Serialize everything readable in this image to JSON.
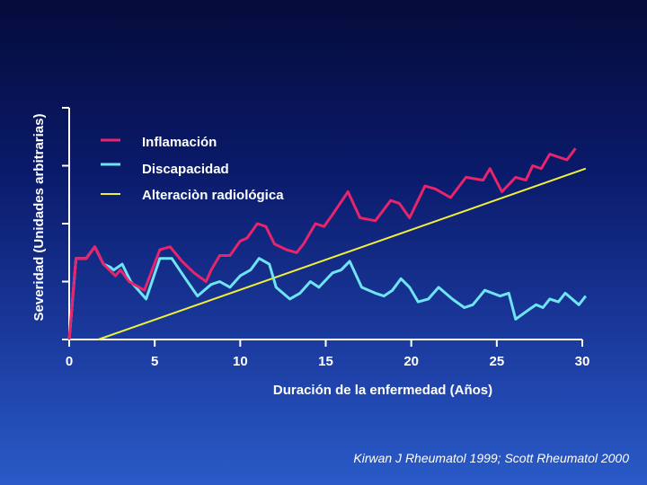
{
  "colors": {
    "inflamacion": "#e8246c",
    "discapacidad": "#6fe4f4",
    "radiologica": "#f0f03a",
    "axis": "#ffffff"
  },
  "source": "Kirwan J Rheumatol 1999; Scott Rheumatol 2000",
  "chart_data": {
    "type": "line",
    "xlabel": "Duración de la enfermedad (Años)",
    "ylabel": "Severidad (Unidades arbitrarias)",
    "xlim": [
      0,
      30
    ],
    "ylim": [
      0,
      4
    ],
    "xticks": [
      "0",
      "5",
      "10",
      "15",
      "20",
      "25",
      "30"
    ],
    "yticks": [
      0,
      1,
      2,
      3,
      4
    ],
    "legend_position": "top-left",
    "series": [
      {
        "name": "Inflamación",
        "color": "#e8246c",
        "points": [
          [
            0,
            0
          ],
          [
            0.4,
            1.4
          ],
          [
            1.0,
            1.4
          ],
          [
            1.5,
            1.6
          ],
          [
            2.0,
            1.3
          ],
          [
            2.7,
            1.1
          ],
          [
            3.0,
            1.2
          ],
          [
            3.5,
            1.0
          ],
          [
            4.4,
            0.85
          ],
          [
            5.3,
            1.55
          ],
          [
            5.9,
            1.6
          ],
          [
            6.6,
            1.35
          ],
          [
            7.3,
            1.15
          ],
          [
            8.0,
            1.0
          ],
          [
            8.3,
            1.2
          ],
          [
            8.8,
            1.45
          ],
          [
            9.4,
            1.45
          ],
          [
            10.0,
            1.7
          ],
          [
            10.4,
            1.75
          ],
          [
            11.0,
            2.0
          ],
          [
            11.5,
            1.95
          ],
          [
            12.0,
            1.65
          ],
          [
            12.7,
            1.55
          ],
          [
            13.3,
            1.5
          ],
          [
            13.7,
            1.65
          ],
          [
            14.4,
            2.0
          ],
          [
            14.9,
            1.95
          ],
          [
            15.5,
            2.2
          ],
          [
            16.3,
            2.55
          ],
          [
            17.0,
            2.1
          ],
          [
            17.9,
            2.05
          ],
          [
            18.8,
            2.4
          ],
          [
            19.3,
            2.35
          ],
          [
            19.9,
            2.1
          ],
          [
            20.8,
            2.65
          ],
          [
            21.4,
            2.6
          ],
          [
            22.3,
            2.45
          ],
          [
            23.2,
            2.8
          ],
          [
            24.2,
            2.75
          ],
          [
            24.6,
            2.95
          ],
          [
            25.3,
            2.55
          ],
          [
            26.1,
            2.8
          ],
          [
            26.7,
            2.75
          ],
          [
            27.1,
            3.0
          ],
          [
            27.6,
            2.95
          ],
          [
            28.1,
            3.2
          ],
          [
            29.1,
            3.1
          ],
          [
            29.6,
            3.3
          ]
        ]
      },
      {
        "name": "Discapacidad",
        "color": "#6fe4f4",
        "points": [
          [
            0,
            0
          ],
          [
            0.4,
            1.4
          ],
          [
            1.0,
            1.4
          ],
          [
            1.5,
            1.6
          ],
          [
            2.0,
            1.3
          ],
          [
            2.4,
            1.25
          ],
          [
            2.6,
            1.2
          ],
          [
            3.1,
            1.3
          ],
          [
            3.6,
            1.0
          ],
          [
            4.5,
            0.7
          ],
          [
            5.3,
            1.4
          ],
          [
            6.0,
            1.4
          ],
          [
            6.8,
            1.05
          ],
          [
            7.5,
            0.75
          ],
          [
            8.3,
            0.95
          ],
          [
            8.8,
            1.0
          ],
          [
            9.4,
            0.9
          ],
          [
            10.0,
            1.1
          ],
          [
            10.6,
            1.2
          ],
          [
            11.1,
            1.4
          ],
          [
            11.7,
            1.3
          ],
          [
            12.1,
            0.9
          ],
          [
            12.9,
            0.7
          ],
          [
            13.5,
            0.8
          ],
          [
            14.1,
            1.0
          ],
          [
            14.6,
            0.9
          ],
          [
            15.4,
            1.15
          ],
          [
            15.9,
            1.2
          ],
          [
            16.4,
            1.35
          ],
          [
            17.1,
            0.9
          ],
          [
            17.9,
            0.8
          ],
          [
            18.4,
            0.75
          ],
          [
            18.9,
            0.85
          ],
          [
            19.4,
            1.05
          ],
          [
            19.9,
            0.9
          ],
          [
            20.4,
            0.65
          ],
          [
            21.0,
            0.7
          ],
          [
            21.6,
            0.9
          ],
          [
            22.4,
            0.7
          ],
          [
            23.1,
            0.55
          ],
          [
            23.6,
            0.6
          ],
          [
            24.3,
            0.85
          ],
          [
            25.2,
            0.75
          ],
          [
            25.7,
            0.8
          ],
          [
            26.1,
            0.35
          ],
          [
            26.8,
            0.5
          ],
          [
            27.3,
            0.6
          ],
          [
            27.7,
            0.55
          ],
          [
            28.1,
            0.7
          ],
          [
            28.6,
            0.65
          ],
          [
            29.0,
            0.8
          ],
          [
            29.8,
            0.6
          ],
          [
            30.2,
            0.75
          ]
        ]
      },
      {
        "name": "Alteraciòn radiológica",
        "color": "#f0f03a",
        "points": [
          [
            1.7,
            0
          ],
          [
            30.2,
            2.95
          ]
        ]
      }
    ]
  }
}
